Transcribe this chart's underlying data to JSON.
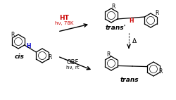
{
  "bg_color": "#ffffff",
  "ht_label": "HT",
  "ht_sublabel": "hν, 78K",
  "obf_label": "OBF",
  "obf_sublabel": "hν, rt",
  "cis_label": "cis",
  "trans_prime_label": "trans'",
  "trans_label": "trans",
  "H_label": "H",
  "R_label": "R",
  "delta_label": "Δ",
  "H_blue_color": "#0000cc",
  "H_red_color": "#cc0000",
  "arrow_color": "#000000",
  "ht_color": "#cc0000",
  "dashed_color": "#666666",
  "ring_color": "#000000",
  "bond_color": "#000000",
  "fig_width": 2.5,
  "fig_height": 1.42,
  "dpi": 100
}
